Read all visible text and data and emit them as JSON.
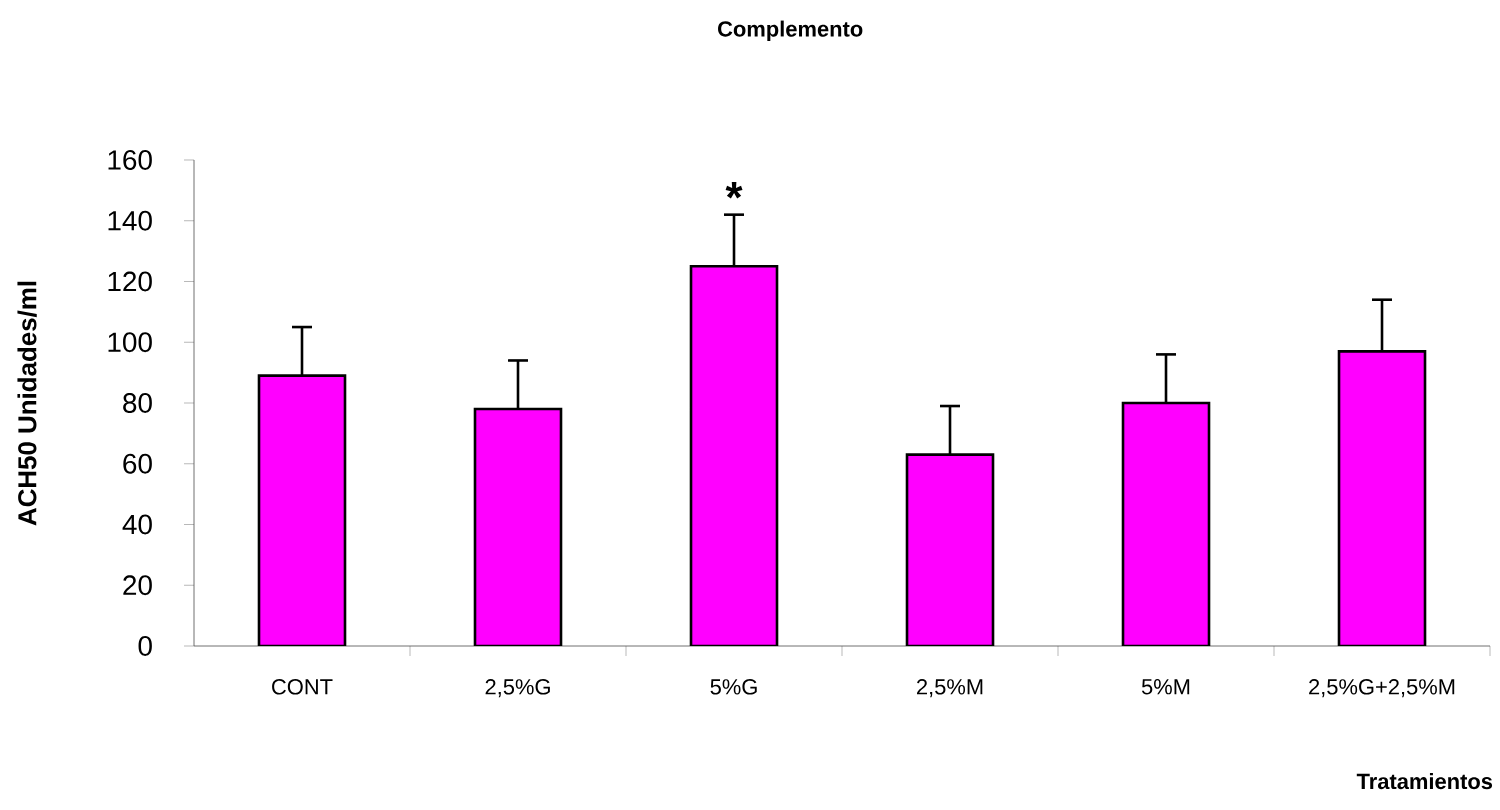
{
  "chart_data": {
    "type": "bar",
    "title": "Complemento",
    "xlabel": "Tratamientos",
    "ylabel": "ACH50 Unidades/ml",
    "categories": [
      "CONT",
      "2,5%G",
      "5%G",
      "2,5%M",
      "5%M",
      "2,5%G+2,5%M"
    ],
    "values": [
      89,
      78,
      125,
      63,
      80,
      97
    ],
    "errors": [
      [
        89,
        105
      ],
      [
        78,
        94
      ],
      [
        125,
        142
      ],
      [
        63,
        79
      ],
      [
        80,
        96
      ],
      [
        97,
        114
      ]
    ],
    "color": "#ff00ff",
    "ylim": [
      0,
      160
    ],
    "yticks": [
      0,
      20,
      40,
      60,
      80,
      100,
      120,
      140,
      160
    ],
    "grid": false,
    "annotations": [
      {
        "text": "*",
        "x": "5%G",
        "y": 142
      }
    ]
  }
}
